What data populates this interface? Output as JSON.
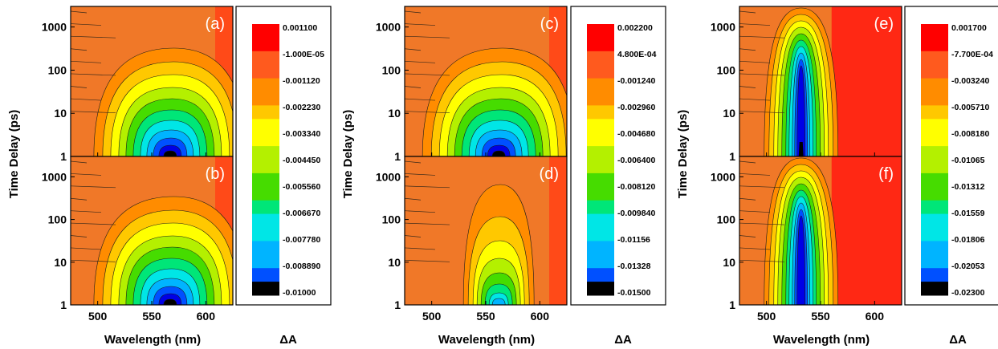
{
  "figure": {
    "y_axis_label": "Time Delay (ps)",
    "x_axis_label": "Wavelength (nm)",
    "colorbar_label": "ΔA"
  },
  "chart_data": [
    {
      "type": "heatmap",
      "panel": "(a)",
      "shared_colorbar_group": "left",
      "xlabel": "Wavelength (nm)",
      "ylabel": "Time Delay (ps)",
      "x_ticks": [
        500,
        550,
        600
      ],
      "y_ticks": [
        1,
        10,
        100,
        1000
      ],
      "xlim": [
        475,
        625
      ],
      "ylim": [
        1,
        3000
      ],
      "y_scale": "log",
      "feature": "broad negative band peaking near 565 nm, decaying by ~100 ps",
      "min_value": -0.01,
      "center_nm": 567
    },
    {
      "type": "heatmap",
      "panel": "(b)",
      "shared_colorbar_group": "left",
      "xlabel": "Wavelength (nm)",
      "ylabel": "Time Delay (ps)",
      "x_ticks": [
        500,
        550,
        600
      ],
      "y_ticks": [
        1,
        10,
        100,
        1000
      ],
      "xlim": [
        475,
        625
      ],
      "ylim": [
        1,
        3000
      ],
      "y_scale": "log",
      "feature": "broad negative band peaking near 565 nm, decaying by ~100 ps",
      "min_value": -0.01,
      "center_nm": 567
    },
    {
      "type": "heatmap",
      "panel": "(c)",
      "shared_colorbar_group": "middle",
      "xlabel": "Wavelength (nm)",
      "ylabel": "Time Delay (ps)",
      "x_ticks": [
        500,
        550,
        600
      ],
      "y_ticks": [
        1,
        10,
        100,
        1000
      ],
      "xlim": [
        475,
        625
      ],
      "ylim": [
        1,
        3000
      ],
      "y_scale": "log",
      "feature": "negative band peaking near 560 nm, decaying by ~50 ps",
      "min_value": -0.015,
      "center_nm": 562
    },
    {
      "type": "heatmap",
      "panel": "(d)",
      "shared_colorbar_group": "middle",
      "xlabel": "Wavelength (nm)",
      "ylabel": "Time Delay (ps)",
      "x_ticks": [
        500,
        550,
        600
      ],
      "y_ticks": [
        1,
        10,
        100,
        1000
      ],
      "xlim": [
        475,
        625
      ],
      "ylim": [
        1,
        3000
      ],
      "y_scale": "log",
      "feature": "narrow negative band near 560-575 nm, tail to ~100 ps",
      "min_value": -0.015,
      "center_nm": 562
    },
    {
      "type": "heatmap",
      "panel": "(e)",
      "shared_colorbar_group": "right",
      "xlabel": "Wavelength (nm)",
      "ylabel": "Time Delay (ps)",
      "x_ticks": [
        500,
        550,
        600
      ],
      "y_ticks": [
        1,
        10,
        100,
        1000
      ],
      "xlim": [
        475,
        625
      ],
      "ylim": [
        1,
        3000
      ],
      "y_scale": "log",
      "feature": "long-lived narrow negative band centred at ~532 nm persisting beyond 1000 ps",
      "min_value": -0.023,
      "center_nm": 532
    },
    {
      "type": "heatmap",
      "panel": "(f)",
      "shared_colorbar_group": "right",
      "xlabel": "Wavelength (nm)",
      "ylabel": "Time Delay (ps)",
      "x_ticks": [
        500,
        550,
        600
      ],
      "y_ticks": [
        1,
        10,
        100,
        1000
      ],
      "xlim": [
        475,
        625
      ],
      "ylim": [
        1,
        3000
      ],
      "y_scale": "log",
      "feature": "long-lived narrow negative band centred at ~532 nm persisting beyond 1000 ps",
      "min_value": -0.023,
      "center_nm": 532
    }
  ],
  "colorbars": [
    {
      "group": "left",
      "labels": [
        "0.001100",
        "-1.000E-05",
        "-0.001120",
        "-0.002230",
        "-0.003340",
        "-0.004450",
        "-0.005560",
        "-0.006670",
        "-0.007780",
        "-0.008890",
        "-0.01000"
      ]
    },
    {
      "group": "middle",
      "labels": [
        "0.002200",
        "4.800E-04",
        "-0.001240",
        "-0.002960",
        "-0.004680",
        "-0.006400",
        "-0.008120",
        "-0.009840",
        "-0.01156",
        "-0.01328",
        "-0.01500"
      ]
    },
    {
      "group": "right",
      "labels": [
        "0.001700",
        "-7.700E-04",
        "-0.003240",
        "-0.005710",
        "-0.008180",
        "-0.01065",
        "-0.01312",
        "-0.01559",
        "-0.01806",
        "-0.02053",
        "-0.02300"
      ]
    }
  ],
  "colors": {
    "palette": [
      "#000000",
      "#0000e6",
      "#0050ff",
      "#00b4ff",
      "#00e6e6",
      "#00e678",
      "#46dc00",
      "#b4f000",
      "#ffff00",
      "#ffc800",
      "#ff8c00",
      "#ff5a1e",
      "#ff0000"
    ],
    "background_orange": "#f07828",
    "positive_red": "#ff2814"
  }
}
